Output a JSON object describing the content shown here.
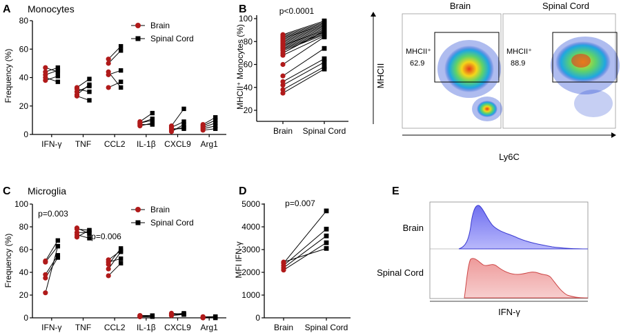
{
  "colors": {
    "brain": "#b01a1a",
    "spinal": "#000000",
    "hist_brain": "#7b7bf0",
    "hist_spinal": "#f0a0a0"
  },
  "panels": {
    "A": {
      "letter": "A",
      "title": "Monocytes",
      "ylabel": "Frequency (%)",
      "categories": [
        "IFN-γ",
        "TNF",
        "CCL2",
        "IL-1β",
        "CXCL9",
        "Arg1"
      ],
      "yticks": [
        "0",
        "20",
        "40",
        "60",
        "80"
      ],
      "legend": [
        "Brain",
        "Spinal Cord"
      ]
    },
    "B": {
      "letter": "B",
      "ylabel": "MHCII⁺ Monocytes (%)",
      "pvalue": "p<0.0001",
      "categories": [
        "Brain",
        "Spinal Cord"
      ],
      "yticks": [
        "20",
        "40",
        "60",
        "80",
        "100"
      ]
    },
    "flow": {
      "left_title": "Brain",
      "right_title": "Spinal Cord",
      "ylabel": "MHCII",
      "xlabel": "Ly6C",
      "left_gate": "MHCII⁺",
      "left_value": "62.9",
      "right_gate": "MHCII⁺",
      "right_value": "88.9"
    },
    "C": {
      "letter": "C",
      "title": "Microglia",
      "ylabel": "Frequency (%)",
      "categories": [
        "IFN-γ",
        "TNF",
        "CCL2",
        "IL-1β",
        "CXCL9",
        "Arg1"
      ],
      "yticks": [
        "0",
        "20",
        "40",
        "60",
        "80",
        "100"
      ],
      "legend": [
        "Brain",
        "Spinal Cord"
      ],
      "p1": "p=0.003",
      "p2": "p=0.006"
    },
    "D": {
      "letter": "D",
      "ylabel": "MFI IFN-γ",
      "pvalue": "p=0.007",
      "categories": [
        "Brain",
        "Spinal Cord"
      ],
      "yticks": [
        "0",
        "1000",
        "2000",
        "3000",
        "4000",
        "5000"
      ]
    },
    "E": {
      "letter": "E",
      "label_top": "Brain",
      "label_bottom": "Spinal Cord",
      "xlabel": "IFN-γ"
    }
  },
  "chart_data": [
    {
      "panel": "A",
      "type": "scatter",
      "title": "Monocytes",
      "ylabel": "Frequency (%)",
      "ylim": [
        0,
        80
      ],
      "categories": [
        "IFN-γ",
        "TNF",
        "CCL2",
        "IL-1β",
        "CXCL9",
        "Arg1"
      ],
      "series": [
        {
          "name": "Brain",
          "values": [
            [
              38,
              42,
              40,
              44,
              47
            ],
            [
              28,
              27,
              30,
              32,
              33
            ],
            [
              33,
              44,
              50,
              53,
              42
            ],
            [
              8,
              6,
              7,
              9,
              8
            ],
            [
              3,
              2,
              4,
              6,
              5
            ],
            [
              4,
              3,
              6,
              7,
              5
            ]
          ]
        },
        {
          "name": "Spinal Cord",
          "values": [
            [
              41,
              45,
              37,
              47,
              44
            ],
            [
              35,
              24,
              34,
              30,
              39
            ],
            [
              37,
              33,
              59,
              62,
              45
            ],
            [
              10,
              8,
              7,
              15,
              11
            ],
            [
              5,
              7,
              4,
              18,
              9
            ],
            [
              6,
              4,
              10,
              12,
              8
            ]
          ]
        }
      ]
    },
    {
      "panel": "B",
      "type": "scatter",
      "ylabel": "MHCII⁺ Monocytes (%)",
      "ylim": [
        20,
        100
      ],
      "categories": [
        "Brain",
        "Spinal Cord"
      ],
      "pairs": [
        [
          86,
          98
        ],
        [
          85,
          97
        ],
        [
          84,
          96
        ],
        [
          83,
          95
        ],
        [
          82,
          95
        ],
        [
          81,
          94
        ],
        [
          80,
          93
        ],
        [
          79,
          92
        ],
        [
          78,
          91
        ],
        [
          77,
          90
        ],
        [
          76,
          90
        ],
        [
          75,
          89
        ],
        [
          74,
          88
        ],
        [
          73,
          87
        ],
        [
          72,
          86
        ],
        [
          70,
          89
        ],
        [
          68,
          85
        ],
        [
          60,
          84
        ],
        [
          50,
          74
        ],
        [
          45,
          65
        ],
        [
          42,
          62
        ],
        [
          38,
          58
        ],
        [
          35,
          56
        ]
      ]
    },
    {
      "panel": "C",
      "type": "scatter",
      "title": "Microglia",
      "ylabel": "Frequency (%)",
      "ylim": [
        0,
        100
      ],
      "categories": [
        "IFN-γ",
        "TNF",
        "CCL2",
        "IL-1β",
        "CXCL9",
        "Arg1"
      ],
      "series": [
        {
          "name": "Brain",
          "values": [
            [
              22,
              35,
              38,
              50,
              49
            ],
            [
              79,
              75,
              73,
              71,
              78
            ],
            [
              37,
              43,
              47,
              51,
              49
            ],
            [
              1,
              2,
              1,
              2,
              1
            ],
            [
              3,
              2,
              3,
              4,
              3
            ],
            [
              0,
              0,
              1,
              0,
              0
            ]
          ]
        },
        {
          "name": "Spinal Cord",
          "values": [
            [
              63,
              53,
              55,
              68,
              63
            ],
            [
              74,
              75,
              70,
              77,
              77
            ],
            [
              48,
              58,
              61,
              59,
              52
            ],
            [
              2,
              2,
              1,
              2,
              2
            ],
            [
              3,
              3,
              4,
              3,
              3
            ],
            [
              1,
              0,
              1,
              1,
              0
            ]
          ]
        }
      ],
      "annotations": [
        "p=0.003",
        "p=0.006"
      ]
    },
    {
      "panel": "D",
      "type": "scatter",
      "ylabel": "MFI IFN-γ",
      "ylim": [
        0,
        5000
      ],
      "categories": [
        "Brain",
        "Spinal Cord"
      ],
      "pairs": [
        [
          2400,
          4700
        ],
        [
          2300,
          3900
        ],
        [
          2200,
          3600
        ],
        [
          2100,
          3300
        ],
        [
          2450,
          3050
        ]
      ],
      "annotations": [
        "p=0.007"
      ]
    }
  ]
}
